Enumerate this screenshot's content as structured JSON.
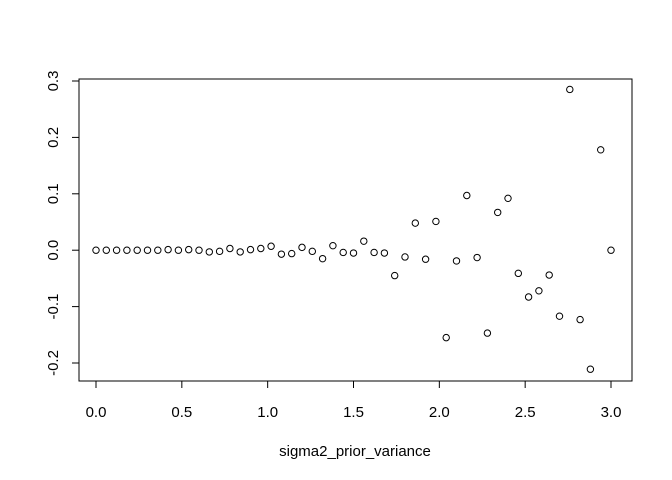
{
  "chart_data": {
    "type": "scatter",
    "title": "",
    "xlabel": "sigma2_prior_variance",
    "ylabel": "",
    "xlim": [
      -0.12,
      3.12
    ],
    "ylim": [
      -0.22,
      0.31
    ],
    "xticks": [
      0.0,
      0.5,
      1.0,
      1.5,
      2.0,
      2.5,
      3.0
    ],
    "xtick_labels": [
      "0.0",
      "0.5",
      "1.0",
      "1.5",
      "2.0",
      "2.5",
      "3.0"
    ],
    "yticks": [
      -0.2,
      -0.1,
      0.0,
      0.1,
      0.2,
      0.3
    ],
    "ytick_labels": [
      "-0.2",
      "-0.1",
      "0.0",
      "0.1",
      "0.2",
      "0.3"
    ],
    "grid": false,
    "marker": "open-circle",
    "x": [
      0.0,
      0.06,
      0.12,
      0.18,
      0.24,
      0.3,
      0.36,
      0.42,
      0.48,
      0.54,
      0.6,
      0.66,
      0.72,
      0.78,
      0.84,
      0.9,
      0.96,
      1.02,
      1.08,
      1.14,
      1.2,
      1.26,
      1.32,
      1.38,
      1.44,
      1.5,
      1.56,
      1.62,
      1.68,
      1.74,
      1.8,
      1.86,
      1.92,
      1.98,
      2.04,
      2.1,
      2.16,
      2.22,
      2.28,
      2.34,
      2.4,
      2.46,
      2.52,
      2.58,
      2.64,
      2.7,
      2.76,
      2.82,
      2.88,
      2.94,
      3.0
    ],
    "y": [
      0.0,
      0.0,
      0.0,
      0.0,
      0.0,
      0.0,
      0.0,
      0.001,
      0.0,
      0.001,
      0.0,
      -0.003,
      -0.002,
      0.003,
      -0.003,
      0.001,
      0.003,
      0.007,
      -0.007,
      -0.006,
      0.005,
      -0.002,
      -0.015,
      0.008,
      -0.004,
      -0.005,
      0.016,
      -0.004,
      -0.005,
      -0.045,
      -0.012,
      0.048,
      -0.016,
      0.051,
      -0.155,
      -0.019,
      0.097,
      -0.013,
      -0.147,
      0.067,
      0.092,
      -0.041,
      -0.083,
      -0.072,
      -0.044,
      -0.117,
      0.285,
      -0.123,
      -0.211,
      0.178,
      0.0
    ]
  }
}
